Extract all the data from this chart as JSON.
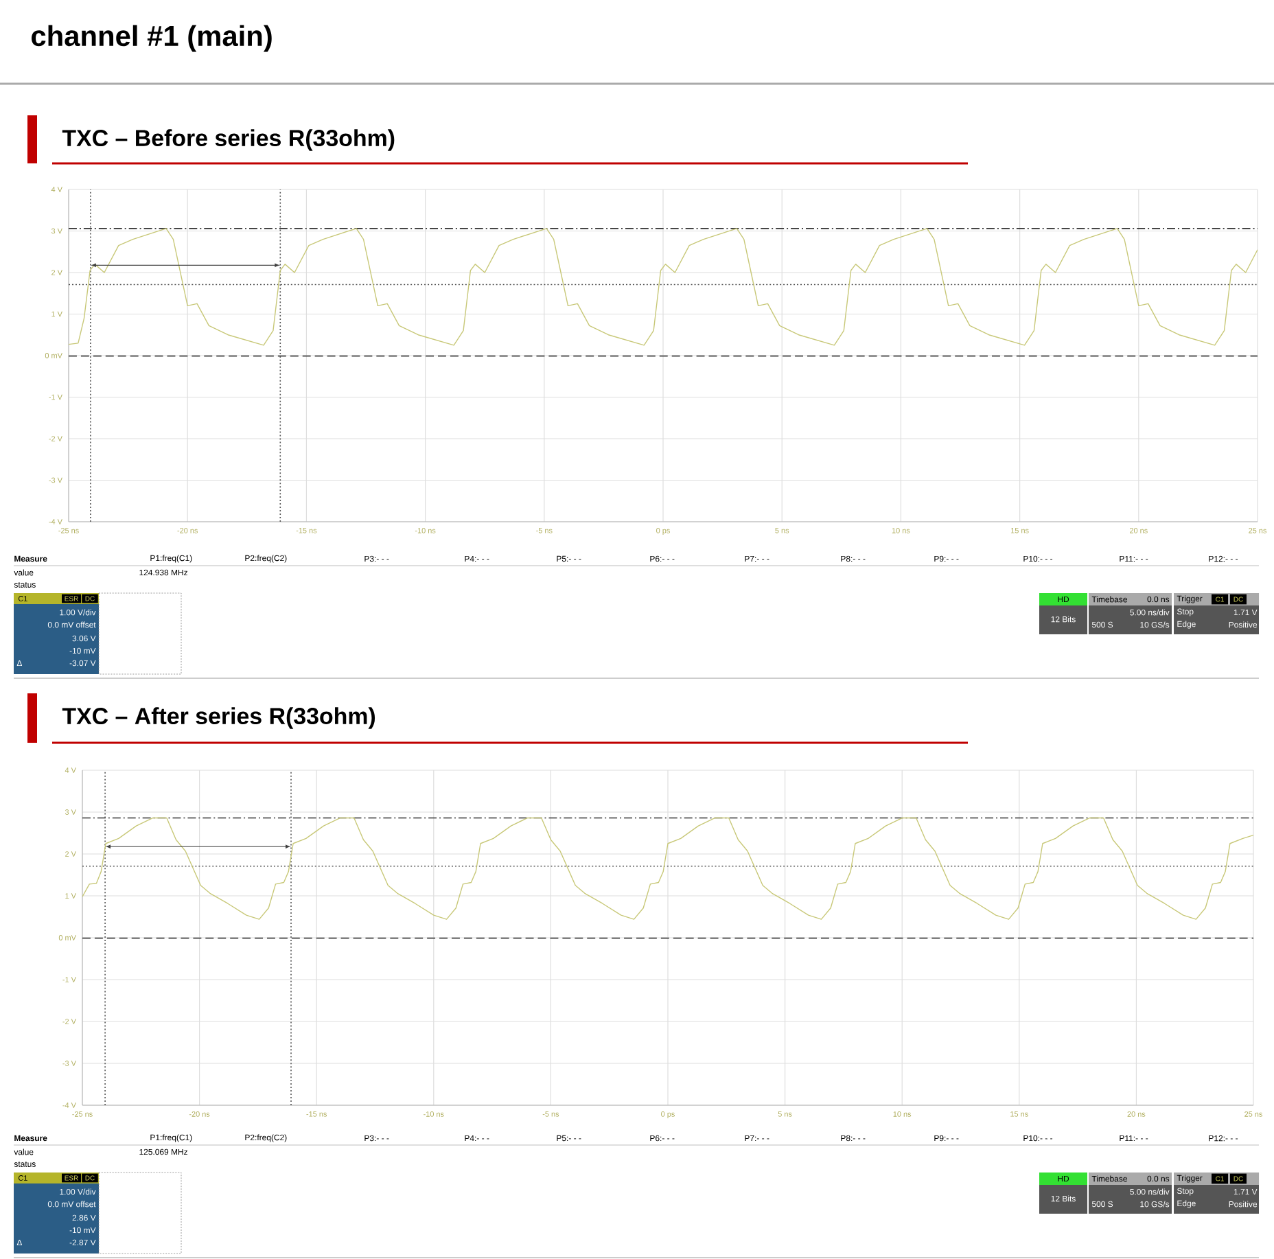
{
  "chart_data": [
    {
      "type": "line",
      "title": "channel #1 (main)",
      "subtitle": "TXC – Before series R(33ohm)",
      "x": [
        -25,
        -24.6,
        -24.35,
        -24.1,
        -23.9,
        -23.5,
        -22.9,
        -22.3,
        -20.9,
        -20.6,
        -20.3,
        -20.0,
        -19.6,
        -19.1,
        -18.3,
        -16.8,
        -16.4,
        -16.1,
        -15.9,
        -15.5,
        -14.9,
        -14.3,
        -12.9,
        -12.6,
        -12.3,
        -12.0,
        -11.6,
        -11.1,
        -10.3,
        -8.8,
        -8.4,
        -8.1,
        -7.9,
        -7.5,
        -6.9,
        -6.3,
        -4.9,
        -4.6,
        -4.3,
        -4.0,
        -3.6,
        -3.1,
        -2.3,
        -0.8,
        -0.4,
        -0.1,
        0.1,
        0.5,
        1.1,
        1.7,
        3.1,
        3.4,
        3.7,
        4.0,
        4.4,
        4.9,
        5.7,
        7.2,
        7.6,
        7.9,
        8.1,
        8.5,
        9.1,
        9.7,
        11.1,
        11.4,
        11.7,
        12.0,
        12.4,
        12.9,
        13.7,
        15.2,
        15.6,
        15.9,
        16.1,
        16.5,
        17.1,
        17.7,
        19.1,
        19.4,
        19.7,
        20.0,
        20.4,
        20.9,
        21.7,
        23.2,
        23.6,
        23.9,
        24.1,
        24.5,
        25
      ],
      "series": [
        {
          "color": "#c8c878",
          "values": [
            0.27,
            0.3,
            0.9,
            2.05,
            2.2,
            2.0,
            2.65,
            2.8,
            3.06,
            2.8,
            2.0,
            1.2,
            1.25,
            0.72,
            0.5,
            0.25,
            0.6,
            2.05,
            2.2,
            2.0,
            2.65,
            2.8,
            3.06,
            2.8,
            2.0,
            1.2,
            1.25,
            0.72,
            0.5,
            0.25,
            0.6,
            2.05,
            2.2,
            2.0,
            2.65,
            2.8,
            3.06,
            2.8,
            2.0,
            1.2,
            1.25,
            0.72,
            0.5,
            0.25,
            0.6,
            2.05,
            2.2,
            2.0,
            2.65,
            2.8,
            3.06,
            2.8,
            2.0,
            1.2,
            1.25,
            0.72,
            0.5,
            0.25,
            0.6,
            2.05,
            2.2,
            2.0,
            2.65,
            2.8,
            3.06,
            2.8,
            2.0,
            1.2,
            1.25,
            0.72,
            0.5,
            0.25,
            0.6,
            2.05,
            2.2,
            2.0,
            2.65,
            2.8,
            3.06,
            2.8,
            2.0,
            1.2,
            1.25,
            0.72,
            0.5,
            0.25,
            0.6,
            2.05,
            2.2,
            2.0,
            2.55
          ]
        }
      ],
      "xlim": [
        -25,
        25
      ],
      "xticks": [
        {
          "value": -25,
          "label": "-25 ns"
        },
        {
          "value": -20,
          "label": "-20 ns"
        },
        {
          "value": -15,
          "label": "-15 ns"
        },
        {
          "value": -10,
          "label": "-10 ns"
        },
        {
          "value": -5,
          "label": "-5 ns"
        },
        {
          "value": 0,
          "label": "0 ps"
        },
        {
          "value": 5,
          "label": "5 ns"
        },
        {
          "value": 10,
          "label": "10 ns"
        },
        {
          "value": 15,
          "label": "15 ns"
        },
        {
          "value": 20,
          "label": "20 ns"
        },
        {
          "value": 25,
          "label": "25 ns"
        }
      ],
      "ylim": [
        -4,
        4
      ],
      "yticks": [
        {
          "value": -4,
          "label": "-4 V"
        },
        {
          "value": -3,
          "label": "-3 V"
        },
        {
          "value": -2,
          "label": "-2 V"
        },
        {
          "value": -1,
          "label": "-1 V"
        },
        {
          "value": 0,
          "label": "0 mV"
        },
        {
          "value": 1,
          "label": "1 V"
        },
        {
          "value": 2,
          "label": "2 V"
        },
        {
          "value": 3,
          "label": "3 V"
        },
        {
          "value": 4,
          "label": "4 V"
        }
      ],
      "grid": true,
      "ref_lines": [
        {
          "axis": "y",
          "value": 3.06,
          "line_style": "dashdot",
          "color": "#333333"
        },
        {
          "axis": "y",
          "value": 1.71,
          "line_style": "dotted",
          "color": "#555555"
        },
        {
          "axis": "y",
          "value": -0.01,
          "line_style": "dashed",
          "color": "#444444"
        },
        {
          "axis": "x",
          "value": -24.08,
          "line_style": "dotted",
          "color": "#555555"
        },
        {
          "axis": "x",
          "value": -16.1,
          "line_style": "dotted",
          "color": "#555555"
        }
      ],
      "annotations": [
        "Measure",
        "P1:freq(C1)",
        "P2:freq(C2)",
        "P3:- - -",
        "P4:- - -",
        "P5:- - -",
        "P6:- - -",
        "P7:- - -",
        "P8:- - -",
        "P9:- - -",
        "P10:- - -",
        "P11:- - -",
        "P12:- - -",
        "value",
        "124.938 MHz",
        "status",
        "C1",
        "ESR",
        "DC",
        "1.00 V/div",
        "0.0 mV offset",
        "3.06 V",
        "-10 mV",
        "Δ",
        "-3.07 V",
        "HD",
        "12 Bits",
        "Timebase",
        "0.0 ns",
        "5.00 ns/div",
        "500 S",
        "10 GS/s",
        "Trigger",
        "C1",
        "DC",
        "Stop",
        "1.71 V",
        "Edge",
        "Positive"
      ]
    },
    {
      "type": "line",
      "subtitle": "TXC – After series R(33ohm)",
      "x": [
        -25,
        -24.7,
        -24.4,
        -24.2,
        -24,
        -23.45,
        -22.7,
        -22,
        -21.4,
        -21,
        -20.6,
        -19.95,
        -19.55,
        -18.8,
        -18,
        -17.45,
        -17.05,
        -16.75,
        -16.4,
        -16.2,
        -16,
        -15.45,
        -14.7,
        -14,
        -13.4,
        -13,
        -12.6,
        -11.95,
        -11.55,
        -10.8,
        -10,
        -9.45,
        -9.05,
        -8.75,
        -8.4,
        -8.2,
        -8,
        -7.45,
        -6.7,
        -6,
        -5.4,
        -5,
        -4.6,
        -3.95,
        -3.55,
        -2.8,
        -2,
        -1.45,
        -1.05,
        -0.75,
        -0.4,
        -0.2,
        0,
        0.55,
        1.3,
        2,
        2.6,
        3,
        3.4,
        4.05,
        4.45,
        5.2,
        6,
        6.55,
        6.95,
        7.25,
        7.6,
        7.8,
        8,
        8.55,
        9.3,
        10,
        10.6,
        11,
        11.4,
        12.05,
        12.45,
        13.2,
        14,
        14.55,
        14.95,
        15.25,
        15.6,
        15.8,
        16,
        16.55,
        17.3,
        18,
        18.6,
        19,
        19.4,
        20.05,
        20.45,
        21.2,
        22,
        22.55,
        22.95,
        23.25,
        23.6,
        23.8,
        24,
        24.55,
        25
      ],
      "series": [
        {
          "color": "#c8c878",
          "values": [
            0.98,
            1.28,
            1.3,
            1.58,
            2.25,
            2.37,
            2.67,
            2.86,
            2.86,
            2.34,
            2.07,
            1.25,
            1.06,
            0.82,
            0.54,
            0.44,
            0.71,
            1.28,
            1.32,
            1.58,
            2.25,
            2.37,
            2.67,
            2.86,
            2.86,
            2.34,
            2.07,
            1.25,
            1.06,
            0.82,
            0.54,
            0.44,
            0.71,
            1.28,
            1.32,
            1.58,
            2.25,
            2.37,
            2.67,
            2.86,
            2.86,
            2.34,
            2.07,
            1.25,
            1.06,
            0.82,
            0.54,
            0.44,
            0.71,
            1.28,
            1.32,
            1.58,
            2.25,
            2.37,
            2.67,
            2.86,
            2.86,
            2.34,
            2.07,
            1.25,
            1.06,
            0.82,
            0.54,
            0.44,
            0.71,
            1.28,
            1.32,
            1.58,
            2.25,
            2.37,
            2.67,
            2.86,
            2.86,
            2.34,
            2.07,
            1.25,
            1.06,
            0.82,
            0.54,
            0.44,
            0.71,
            1.28,
            1.32,
            1.58,
            2.25,
            2.37,
            2.67,
            2.86,
            2.86,
            2.34,
            2.07,
            1.25,
            1.06,
            0.82,
            0.54,
            0.44,
            0.71,
            1.28,
            1.32,
            1.58,
            2.25,
            2.37,
            2.45
          ]
        }
      ],
      "xlim": [
        -25,
        25
      ],
      "xticks": [
        {
          "value": -25,
          "label": "-25 ns"
        },
        {
          "value": -20,
          "label": "-20 ns"
        },
        {
          "value": -15,
          "label": "-15 ns"
        },
        {
          "value": -10,
          "label": "-10 ns"
        },
        {
          "value": -5,
          "label": "-5 ns"
        },
        {
          "value": 0,
          "label": "0 ps"
        },
        {
          "value": 5,
          "label": "5 ns"
        },
        {
          "value": 10,
          "label": "10 ns"
        },
        {
          "value": 15,
          "label": "15 ns"
        },
        {
          "value": 20,
          "label": "20 ns"
        },
        {
          "value": 25,
          "label": "25 ns"
        }
      ],
      "ylim": [
        -4,
        4
      ],
      "yticks": [
        {
          "value": -4,
          "label": "-4 V"
        },
        {
          "value": -3,
          "label": "-3 V"
        },
        {
          "value": -2,
          "label": "-2 V"
        },
        {
          "value": -1,
          "label": "-1 V"
        },
        {
          "value": 0,
          "label": "0 mV"
        },
        {
          "value": 1,
          "label": "1 V"
        },
        {
          "value": 2,
          "label": "2 V"
        },
        {
          "value": 3,
          "label": "3 V"
        },
        {
          "value": 4,
          "label": "4 V"
        }
      ],
      "grid": true,
      "ref_lines": [
        {
          "axis": "y",
          "value": 2.86,
          "line_style": "dashdot",
          "color": "#333333"
        },
        {
          "axis": "y",
          "value": 1.71,
          "line_style": "dotted",
          "color": "#555555"
        },
        {
          "axis": "y",
          "value": -0.01,
          "line_style": "dashed",
          "color": "#444444"
        },
        {
          "axis": "x",
          "value": -24.03,
          "line_style": "dotted",
          "color": "#555555"
        },
        {
          "axis": "x",
          "value": -16.09,
          "line_style": "dotted",
          "color": "#555555"
        }
      ],
      "annotations": [
        "Measure",
        "P1:freq(C1)",
        "P2:freq(C2)",
        "P3:- - -",
        "P4:- - -",
        "P5:- - -",
        "P6:- - -",
        "P7:- - -",
        "P8:- - -",
        "P9:- - -",
        "P10:- - -",
        "P11:- - -",
        "P12:- - -",
        "value",
        "125.069 MHz",
        "status",
        "C1",
        "ESR",
        "DC",
        "1.00 V/div",
        "0.0 mV offset",
        "2.86 V",
        "-10 mV",
        "Δ",
        "-2.87 V",
        "HD",
        "12 Bits",
        "Timebase",
        "0.0 ns",
        "5.00 ns/div",
        "500 S",
        "10 GS/s",
        "Trigger",
        "C1",
        "DC",
        "Stop",
        "1.71 V",
        "Edge",
        "Positive"
      ]
    }
  ]
}
